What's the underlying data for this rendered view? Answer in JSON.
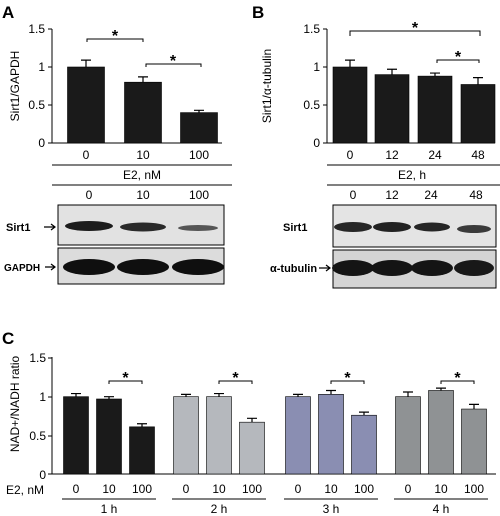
{
  "panels": [
    {
      "letter": "A",
      "ylabel": "Sirt1/GAPDH",
      "yticks": [
        "0",
        "0.5",
        "1",
        "1.5"
      ],
      "xticks": [
        "0",
        "10",
        "100"
      ],
      "group_label": "E2, nM",
      "blot_lanes": [
        "0",
        "10",
        "100"
      ],
      "blot_rows": [
        "Sirt1",
        "GAPDH"
      ],
      "sig": [
        "*",
        "*"
      ]
    },
    {
      "letter": "B",
      "ylabel": "Sirt1/α-tubulin",
      "yticks": [
        "0",
        "0.5",
        "1",
        "1.5"
      ],
      "xticks": [
        "0",
        "12",
        "24",
        "48"
      ],
      "group_label": "E2, h",
      "blot_lanes": [
        "0",
        "12",
        "24",
        "48"
      ],
      "blot_rows": [
        "Sirt1",
        "α-tubulin"
      ],
      "sig": [
        "*",
        "*"
      ]
    },
    {
      "letter": "C",
      "ylabel": "NAD+/NADH ratio",
      "yticks": [
        "0",
        "0.5",
        "1",
        "1.5"
      ],
      "row_label": "E2, nM",
      "xticks": [
        "0",
        "10",
        "100"
      ],
      "groups": [
        "1 h",
        "2 h",
        "3 h",
        "4 h"
      ],
      "sig": [
        "*",
        "*",
        "*",
        "*"
      ]
    }
  ],
  "colors": {
    "black_bar": "#1a1a1a",
    "group_2h": "#b5b8bd",
    "group_3h": "#8a8eb2",
    "group_4h": "#8f9294"
  },
  "chart_data": [
    {
      "type": "bar",
      "categories": [
        "0",
        "10",
        "100"
      ],
      "values": [
        1.0,
        0.8,
        0.4
      ],
      "errors": [
        0.09,
        0.07,
        0.03
      ],
      "xlabel": "E2, nM",
      "ylabel": "Sirt1/GAPDH",
      "ylim": [
        0,
        1.5
      ]
    },
    {
      "type": "bar",
      "categories": [
        "0",
        "12",
        "24",
        "48"
      ],
      "values": [
        1.0,
        0.9,
        0.88,
        0.77
      ],
      "errors": [
        0.09,
        0.07,
        0.04,
        0.09
      ],
      "xlabel": "E2, h",
      "ylabel": "Sirt1/α-tubulin",
      "ylim": [
        0,
        1.5
      ]
    },
    {
      "type": "bar",
      "categories": [
        "0",
        "10",
        "100"
      ],
      "series": [
        {
          "name": "1 h",
          "values": [
            1.0,
            0.97,
            0.61
          ],
          "errors": [
            0.04,
            0.03,
            0.04
          ]
        },
        {
          "name": "2 h",
          "values": [
            1.0,
            1.0,
            0.67
          ],
          "errors": [
            0.03,
            0.04,
            0.05
          ]
        },
        {
          "name": "3 h",
          "values": [
            1.0,
            1.03,
            0.76
          ],
          "errors": [
            0.03,
            0.05,
            0.04
          ]
        },
        {
          "name": "4 h",
          "values": [
            1.0,
            1.08,
            0.84
          ],
          "errors": [
            0.06,
            0.03,
            0.06
          ]
        }
      ],
      "xlabel": "E2, nM",
      "ylabel": "NAD+/NADH ratio",
      "ylim": [
        0,
        1.5
      ]
    }
  ]
}
